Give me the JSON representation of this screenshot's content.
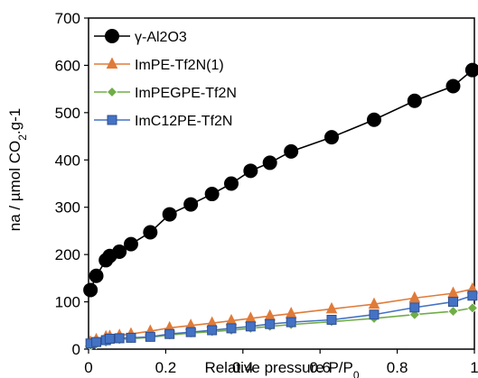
{
  "chart_data": {
    "type": "scatter",
    "xlabel": "Relative pressure P/P",
    "xlabel_sub": "0",
    "ylabel": "na / µmol CO",
    "ylabel_sub": "2",
    "ylabel_tail": ".g-1",
    "xlim": [
      0,
      1
    ],
    "ylim": [
      0,
      700
    ],
    "xticks": [
      0,
      0.2,
      0.4,
      0.6,
      0.8,
      1
    ],
    "xtick_labels": [
      "0",
      "0.2",
      "0.4",
      "0.6",
      "0.8",
      "1"
    ],
    "yticks": [
      0,
      100,
      200,
      300,
      400,
      500,
      600,
      700
    ],
    "ytick_labels": [
      "0",
      "100",
      "200",
      "300",
      "400",
      "500",
      "600",
      "700"
    ],
    "grid": false,
    "legend_position": "top-left",
    "series": [
      {
        "name": "γ-Al2O3",
        "color": "#000000",
        "marker": "circle",
        "x": [
          0.005,
          0.02,
          0.045,
          0.055,
          0.08,
          0.11,
          0.16,
          0.21,
          0.265,
          0.32,
          0.37,
          0.42,
          0.47,
          0.525,
          0.63,
          0.74,
          0.845,
          0.945,
          0.995
        ],
        "y": [
          125,
          155,
          188,
          197,
          206,
          222,
          247,
          285,
          306,
          328,
          350,
          377,
          394,
          418,
          448,
          485,
          525,
          556,
          590
        ]
      },
      {
        "name": "ImPE-Tf2N(1)",
        "color": "#E07B39",
        "marker": "triangle",
        "x": [
          0.005,
          0.02,
          0.045,
          0.055,
          0.08,
          0.11,
          0.16,
          0.21,
          0.265,
          0.32,
          0.37,
          0.42,
          0.47,
          0.525,
          0.63,
          0.74,
          0.845,
          0.945,
          0.995
        ],
        "y": [
          15,
          20,
          26,
          27,
          29,
          32,
          38,
          45,
          50,
          55,
          60,
          65,
          70,
          75,
          85,
          95,
          108,
          118,
          127
        ]
      },
      {
        "name": "ImPEGPE-Tf2N",
        "color": "#70AD47",
        "marker": "diamond",
        "x": [
          0.005,
          0.02,
          0.045,
          0.055,
          0.08,
          0.11,
          0.16,
          0.21,
          0.265,
          0.32,
          0.37,
          0.42,
          0.47,
          0.525,
          0.63,
          0.74,
          0.845,
          0.945,
          0.995
        ],
        "y": [
          8,
          11,
          15,
          18,
          20,
          22,
          25,
          30,
          34,
          37,
          40,
          44,
          48,
          52,
          58,
          65,
          73,
          80,
          87
        ]
      },
      {
        "name": "ImC12PE-Tf2N",
        "color": "#4472C4",
        "marker": "square",
        "x": [
          0.005,
          0.02,
          0.045,
          0.055,
          0.08,
          0.11,
          0.16,
          0.21,
          0.265,
          0.32,
          0.37,
          0.42,
          0.47,
          0.525,
          0.63,
          0.74,
          0.845,
          0.945,
          0.995
        ],
        "y": [
          12,
          15,
          19,
          22,
          23,
          24,
          26,
          32,
          36,
          40,
          44,
          48,
          53,
          57,
          62,
          73,
          88,
          100,
          113
        ]
      }
    ]
  }
}
